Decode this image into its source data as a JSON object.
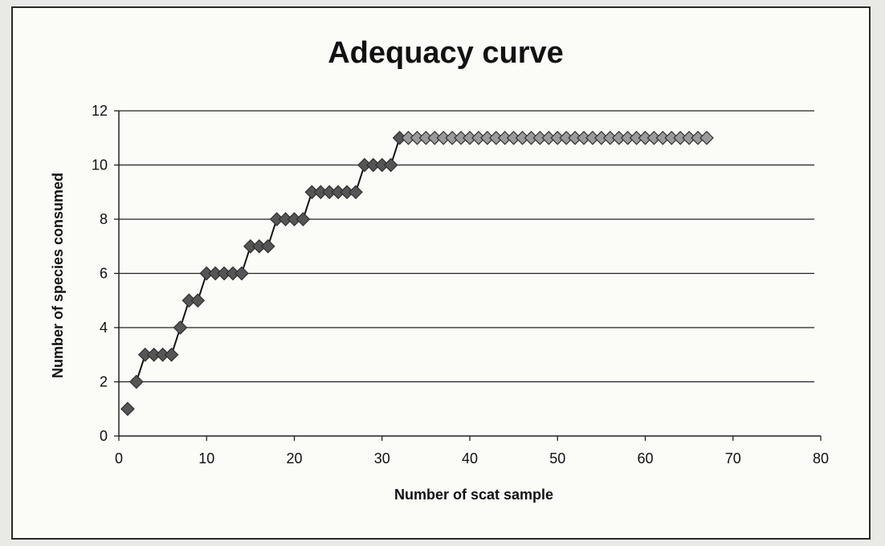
{
  "chart_data": {
    "type": "scatter",
    "title": "Adequacy curve",
    "xlabel": "Number of scat sample",
    "ylabel": "Number of species consumed",
    "xlim": [
      0,
      80
    ],
    "ylim": [
      0,
      12
    ],
    "x_ticks": [
      "0",
      "10",
      "20",
      "30",
      "40",
      "50",
      "60",
      "70",
      "80"
    ],
    "y_ticks": [
      "0",
      "2",
      "4",
      "6",
      "8",
      "10",
      "12"
    ],
    "grid": "horizontal",
    "legend": "none",
    "marker": "diamond",
    "colors": {
      "marker_dark": "#555555",
      "marker_light": "#9a9a9a",
      "line": "#111111",
      "grid": "#222222"
    },
    "series": [
      {
        "x": [
          1,
          2,
          3,
          4,
          5,
          6,
          7,
          8,
          9,
          10,
          11,
          12,
          13,
          14,
          15,
          16,
          17,
          18,
          19,
          20,
          21,
          22,
          23,
          24,
          25,
          26,
          27,
          28,
          29,
          30,
          31,
          32,
          33,
          34,
          35,
          36,
          37,
          38,
          39,
          40,
          41,
          42,
          43,
          44,
          45,
          46,
          47,
          48,
          49,
          50,
          51,
          52,
          53,
          54,
          55,
          56,
          57,
          58,
          59,
          60,
          61,
          62,
          63,
          64,
          65,
          66,
          67
        ],
        "y": [
          1,
          2,
          3,
          3,
          3,
          3,
          4,
          5,
          5,
          6,
          6,
          6,
          6,
          6,
          7,
          7,
          7,
          8,
          8,
          8,
          8,
          9,
          9,
          9,
          9,
          9,
          9,
          10,
          10,
          10,
          10,
          11,
          11,
          11,
          11,
          11,
          11,
          11,
          11,
          11,
          11,
          11,
          11,
          11,
          11,
          11,
          11,
          11,
          11,
          11,
          11,
          11,
          11,
          11,
          11,
          11,
          11,
          11,
          11,
          11,
          11,
          11,
          11,
          11,
          11,
          11,
          11
        ]
      }
    ]
  }
}
